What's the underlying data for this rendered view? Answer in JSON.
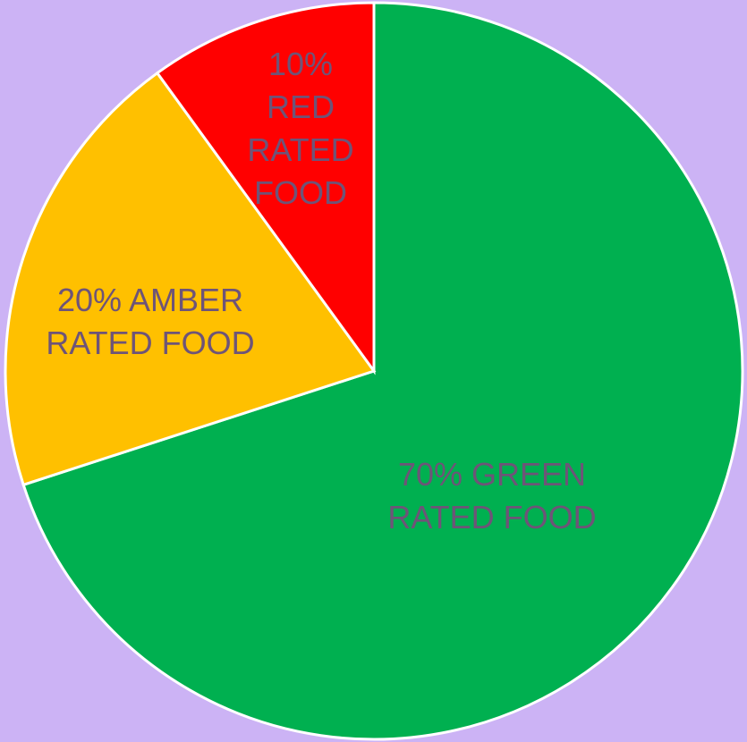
{
  "chart_data": {
    "type": "pie",
    "values": [
      70,
      20,
      10
    ],
    "value_labels": [
      "70% GREEN RATED FOOD",
      "20% AMBER RATED FOOD",
      "10% RED RATED FOOD"
    ],
    "colors": [
      "#00b050",
      "#ffc000",
      "#ff0000"
    ]
  }
}
